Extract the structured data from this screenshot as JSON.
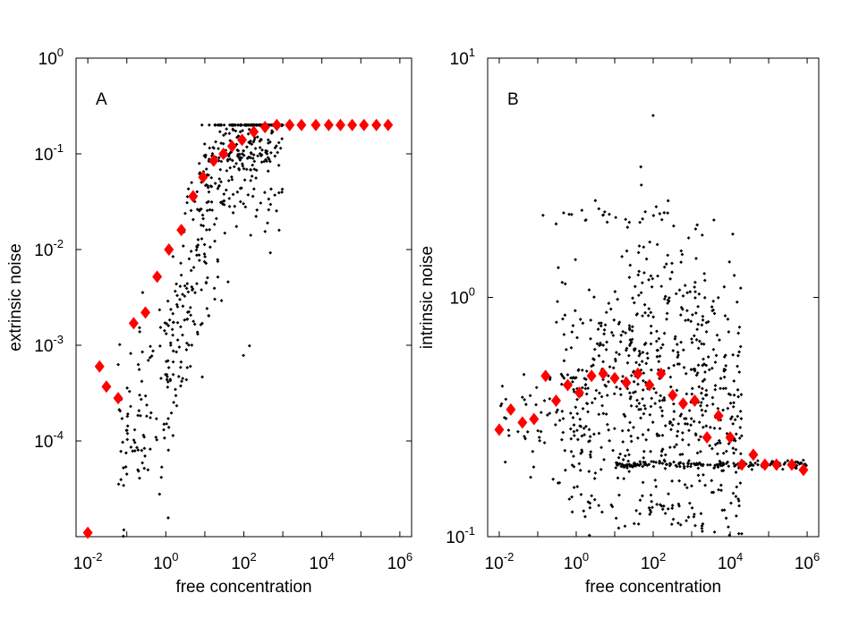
{
  "colors": {
    "scatter": "#000000",
    "means": "#ff0000",
    "axes": "#000000",
    "background": "#ffffff"
  },
  "chart_data": [
    {
      "type": "scatter",
      "panel_label": "A",
      "xlabel": "free concentration",
      "ylabel": "extrinsic noise",
      "xscale": "log",
      "yscale": "log",
      "xlim": [
        0.005,
        2000000
      ],
      "ylim": [
        1e-05,
        1
      ],
      "x_tick_labels": [
        {
          "value": 0.01,
          "base": "10",
          "exp": "-2"
        },
        {
          "value": 1,
          "base": "10",
          "exp": "0"
        },
        {
          "value": 100,
          "base": "10",
          "exp": "2"
        },
        {
          "value": 10000,
          "base": "10",
          "exp": "4"
        },
        {
          "value": 1000000,
          "base": "10",
          "exp": "6"
        }
      ],
      "y_tick_labels": [
        {
          "value": 0.0001,
          "base": "10",
          "exp": "-4"
        },
        {
          "value": 0.001,
          "base": "10",
          "exp": "-3"
        },
        {
          "value": 0.01,
          "base": "10",
          "exp": "-2"
        },
        {
          "value": 0.1,
          "base": "10",
          "exp": "-1"
        },
        {
          "value": 1,
          "base": "10",
          "exp": "0"
        }
      ],
      "mean_points": [
        [
          0.01,
          1.1e-05
        ],
        [
          0.02,
          0.0006
        ],
        [
          0.03,
          0.00037
        ],
        [
          0.06,
          0.00028
        ],
        [
          0.15,
          0.0017
        ],
        [
          0.3,
          0.0022
        ],
        [
          0.6,
          0.0052
        ],
        [
          1.2,
          0.01
        ],
        [
          2.5,
          0.016
        ],
        [
          5,
          0.036
        ],
        [
          9,
          0.057
        ],
        [
          17,
          0.085
        ],
        [
          30,
          0.1
        ],
        [
          50,
          0.12
        ],
        [
          90,
          0.14
        ],
        [
          180,
          0.17
        ],
        [
          350,
          0.19
        ],
        [
          700,
          0.2
        ],
        [
          1500,
          0.2
        ],
        [
          3000,
          0.2
        ],
        [
          7000,
          0.2
        ],
        [
          15000,
          0.2
        ],
        [
          30000,
          0.2
        ],
        [
          60000,
          0.2
        ],
        [
          120000,
          0.2
        ],
        [
          250000,
          0.2
        ],
        [
          500000,
          0.2
        ]
      ],
      "scatter_clusters": [
        {
          "count": 420,
          "x_range": [
            1,
            1000
          ],
          "trend": [
            [
              1,
              0.0004
            ],
            [
              3,
              0.003
            ],
            [
              10,
              0.03
            ],
            [
              30,
              0.1
            ],
            [
              100,
              0.16
            ],
            [
              1000,
              0.19
            ]
          ],
          "spread_decades": 0.55,
          "cap": 0.2
        },
        {
          "count": 90,
          "x_range": [
            0.05,
            1
          ],
          "trend": [
            [
              0.05,
              6e-05
            ],
            [
              0.3,
              0.00015
            ],
            [
              1,
              0.0004
            ]
          ],
          "spread_decades": 0.6,
          "cap": 0.2
        },
        {
          "count": 60,
          "x_range": [
            10,
            500
          ],
          "trend": [
            [
              10,
              0.1
            ],
            [
              500,
              0.1
            ]
          ],
          "spread_decades": 0.05,
          "cap": 0.2
        }
      ]
    },
    {
      "type": "scatter",
      "panel_label": "B",
      "xlabel": "free concentration",
      "ylabel": "intrinsic noise",
      "xscale": "log",
      "yscale": "log",
      "xlim": [
        0.005,
        2000000
      ],
      "ylim": [
        0.1,
        10
      ],
      "x_tick_labels": [
        {
          "value": 0.01,
          "base": "10",
          "exp": "-2"
        },
        {
          "value": 1,
          "base": "10",
          "exp": "0"
        },
        {
          "value": 100,
          "base": "10",
          "exp": "2"
        },
        {
          "value": 10000,
          "base": "10",
          "exp": "4"
        },
        {
          "value": 1000000,
          "base": "10",
          "exp": "6"
        }
      ],
      "y_tick_labels": [
        {
          "value": 0.1,
          "base": "10",
          "exp": "-1"
        },
        {
          "value": 1,
          "base": "10",
          "exp": "0"
        },
        {
          "value": 10,
          "base": "10",
          "exp": "1"
        }
      ],
      "mean_points": [
        [
          0.01,
          0.28
        ],
        [
          0.02,
          0.34
        ],
        [
          0.04,
          0.3
        ],
        [
          0.08,
          0.31
        ],
        [
          0.16,
          0.47
        ],
        [
          0.3,
          0.37
        ],
        [
          0.6,
          0.43
        ],
        [
          1.2,
          0.4
        ],
        [
          2.5,
          0.47
        ],
        [
          5,
          0.48
        ],
        [
          10,
          0.46
        ],
        [
          20,
          0.44
        ],
        [
          40,
          0.48
        ],
        [
          80,
          0.43
        ],
        [
          160,
          0.48
        ],
        [
          320,
          0.39
        ],
        [
          600,
          0.36
        ],
        [
          1200,
          0.37
        ],
        [
          2500,
          0.26
        ],
        [
          5000,
          0.32
        ],
        [
          10000,
          0.26
        ],
        [
          20000,
          0.2
        ],
        [
          40000,
          0.22
        ],
        [
          80000,
          0.2
        ],
        [
          160000,
          0.2
        ],
        [
          400000,
          0.2
        ],
        [
          800000,
          0.19
        ]
      ],
      "scatter_clusters": [
        {
          "count": 650,
          "x_range": [
            0.3,
            20000
          ],
          "trend": [
            [
              0.3,
              0.32
            ],
            [
              100,
              0.45
            ],
            [
              20000,
              0.3
            ]
          ],
          "spread_decades": 0.28,
          "cap": 10
        },
        {
          "count": 160,
          "x_range": [
            10,
            1000000
          ],
          "trend": [
            [
              10,
              0.2
            ],
            [
              1000000,
              0.2
            ]
          ],
          "spread_decades": 0.008,
          "cap": 10
        },
        {
          "count": 40,
          "x_range": [
            0.01,
            0.3
          ],
          "trend": [
            [
              0.01,
              0.3
            ],
            [
              0.3,
              0.32
            ]
          ],
          "spread_decades": 0.12,
          "cap": 10
        },
        {
          "count": 22,
          "x_range": [
            0.1,
            200
          ],
          "trend": [
            [
              0.1,
              2.2
            ],
            [
              200,
              2.2
            ]
          ],
          "spread_decades": 0.02,
          "cap": 10
        },
        {
          "count": 60,
          "x_range": [
            20,
            1500
          ],
          "trend": [
            [
              20,
              1.2
            ],
            [
              1500,
              1.0
            ]
          ],
          "spread_decades": 0.25,
          "cap": 10
        },
        {
          "count": 40,
          "x_range": [
            30,
            2000
          ],
          "trend": [
            [
              30,
              0.13
            ],
            [
              2000,
              0.11
            ]
          ],
          "spread_decades": 0.06,
          "cap": 10
        }
      ]
    }
  ]
}
